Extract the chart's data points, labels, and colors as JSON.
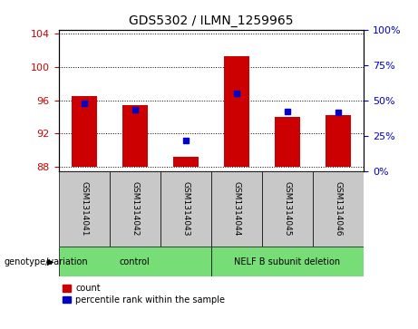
{
  "title": "GDS5302 / ILMN_1259965",
  "samples": [
    "GSM1314041",
    "GSM1314042",
    "GSM1314043",
    "GSM1314044",
    "GSM1314045",
    "GSM1314046"
  ],
  "red_values": [
    96.5,
    95.4,
    89.2,
    101.3,
    94.0,
    94.2
  ],
  "blue_values": [
    95.6,
    94.85,
    91.15,
    96.8,
    94.65,
    94.6
  ],
  "ylim_left": [
    87.5,
    104.5
  ],
  "yticks_left": [
    88,
    92,
    96,
    100,
    104
  ],
  "ylim_right": [
    0,
    100
  ],
  "yticks_right": [
    0,
    25,
    50,
    75,
    100
  ],
  "ybase": 88,
  "bar_color": "#cc0000",
  "dot_color": "#0000cc",
  "groups": [
    {
      "label": "control",
      "indices": [
        0,
        1,
        2
      ],
      "color": "#77dd77"
    },
    {
      "label": "NELF B subunit deletion",
      "indices": [
        3,
        4,
        5
      ],
      "color": "#77dd77"
    }
  ],
  "group_row_label": "genotype/variation",
  "legend_count": "count",
  "legend_percentile": "percentile rank within the sample",
  "grid_color": "black",
  "tick_color_left": "#cc0000",
  "tick_color_right": "#0000cc",
  "bar_width": 0.5,
  "sample_box_color": "#c8c8c8",
  "plot_bg_color": "#ffffff",
  "title_fontsize": 10,
  "tick_fontsize": 8
}
